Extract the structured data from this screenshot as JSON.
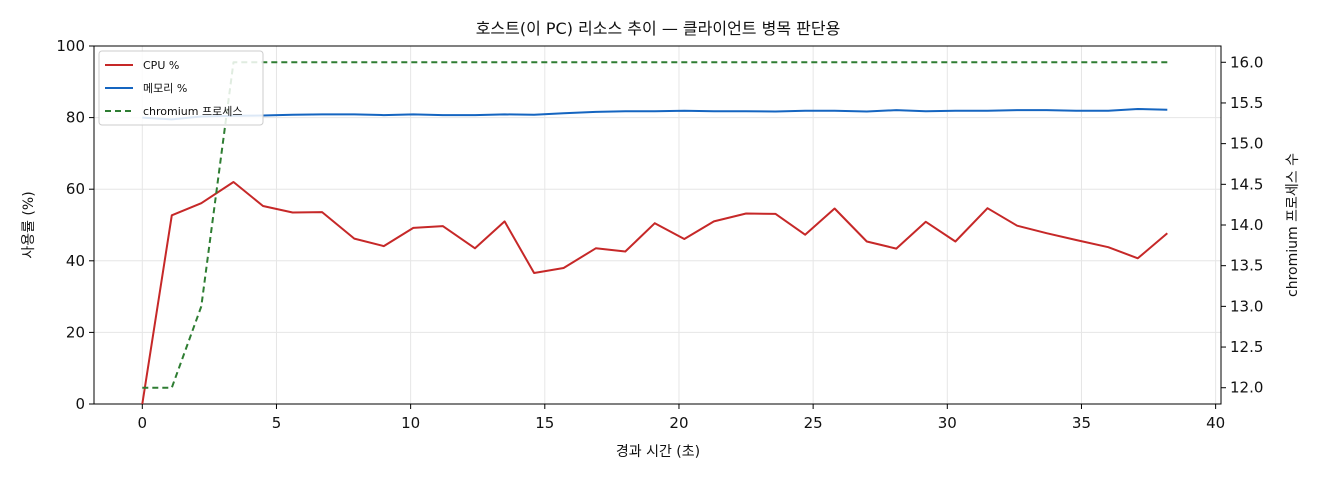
{
  "chart_data": {
    "type": "line",
    "title": "호스트(이 PC) 리소스 추이 — 클라이언트 병목 판단용",
    "xlabel": "경과 시간 (초)",
    "ylabel_left": "사용률 (%)",
    "ylabel_right": "chromium 프로세스 수",
    "xlim": [
      -1.8,
      40.2
    ],
    "ylim_left": [
      0,
      100
    ],
    "ylim_right": [
      11.8,
      16.2
    ],
    "x_ticks": [
      "0",
      "5",
      "10",
      "15",
      "20",
      "25",
      "30",
      "35",
      "40"
    ],
    "y_left_ticks": [
      "0",
      "20",
      "40",
      "60",
      "80",
      "100"
    ],
    "y_right_ticks": [
      "12.0",
      "12.5",
      "13.0",
      "13.5",
      "14.0",
      "14.5",
      "15.0",
      "15.5",
      "16.0"
    ],
    "grid": true,
    "legend_position": "top-left",
    "series": [
      {
        "name": "CPU %",
        "axis": "left",
        "color": "#c62828",
        "style": "solid",
        "x": [
          0.0,
          1.1,
          2.2,
          3.4,
          4.5,
          5.6,
          6.7,
          7.9,
          9.0,
          10.1,
          11.2,
          12.4,
          13.5,
          14.6,
          15.7,
          16.9,
          18.0,
          19.1,
          20.2,
          21.3,
          22.5,
          23.6,
          24.7,
          25.8,
          27.0,
          28.1,
          29.2,
          30.3,
          31.5,
          32.6,
          33.7,
          34.8,
          36.0,
          37.1,
          38.2
        ],
        "y": [
          0,
          52.7,
          56.1,
          62.0,
          55.3,
          53.5,
          53.6,
          46.2,
          44.1,
          49.2,
          49.7,
          43.5,
          51.0,
          36.6,
          38.0,
          43.5,
          42.6,
          50.5,
          46.1,
          51.0,
          53.2,
          53.1,
          47.3,
          54.6,
          45.4,
          43.4,
          50.9,
          45.4,
          54.7,
          49.8,
          47.7,
          45.8,
          43.8,
          40.7,
          47.7
        ]
      },
      {
        "name": "메모리 %",
        "axis": "left",
        "color": "#1565c0",
        "style": "solid",
        "x": [
          0.0,
          1.1,
          2.2,
          3.4,
          4.5,
          5.6,
          6.7,
          7.9,
          9.0,
          10.1,
          11.2,
          12.4,
          13.5,
          14.6,
          15.7,
          16.9,
          18.0,
          19.1,
          20.2,
          21.3,
          22.5,
          23.6,
          24.7,
          25.8,
          27.0,
          28.1,
          29.2,
          30.3,
          31.5,
          32.6,
          33.7,
          34.8,
          36.0,
          37.1,
          38.2
        ],
        "y": [
          80.0,
          79.5,
          80.3,
          80.5,
          80.6,
          80.8,
          80.9,
          80.9,
          80.7,
          80.9,
          80.7,
          80.7,
          80.9,
          80.8,
          81.2,
          81.6,
          81.8,
          81.8,
          81.9,
          81.8,
          81.8,
          81.7,
          81.9,
          81.9,
          81.7,
          82.1,
          81.8,
          81.9,
          81.9,
          82.1,
          82.1,
          81.9,
          81.9,
          82.4,
          82.2
        ]
      },
      {
        "name": "chromium 프로세스 수",
        "legend_label": "chromium 프로세스",
        "axis": "right",
        "color": "#2e7d32",
        "style": "dashed",
        "x": [
          0.0,
          1.1,
          2.2,
          3.4,
          4.5,
          5.6,
          6.7,
          7.9,
          9.0,
          10.1,
          11.2,
          12.4,
          13.5,
          14.6,
          15.7,
          16.9,
          18.0,
          19.1,
          20.2,
          21.3,
          22.5,
          23.6,
          24.7,
          25.8,
          27.0,
          28.1,
          29.2,
          30.3,
          31.5,
          32.6,
          33.7,
          34.8,
          36.0,
          37.1,
          38.2
        ],
        "y": [
          12,
          12,
          13,
          16,
          16,
          16,
          16,
          16,
          16,
          16,
          16,
          16,
          16,
          16,
          16,
          16,
          16,
          16,
          16,
          16,
          16,
          16,
          16,
          16,
          16,
          16,
          16,
          16,
          16,
          16,
          16,
          16,
          16,
          16,
          16
        ]
      }
    ]
  }
}
